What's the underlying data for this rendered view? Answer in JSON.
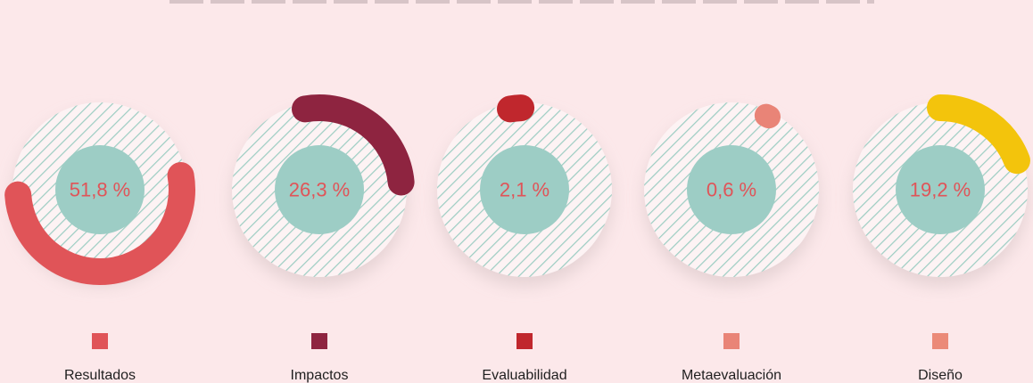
{
  "chart_data": {
    "type": "pie",
    "categories": [
      "Resultados",
      "Impactos",
      "Evaluabilidad",
      "Metaevaluación",
      "Diseño"
    ],
    "values": [
      51.8,
      26.3,
      2.1,
      0.6,
      19.2
    ],
    "value_labels": [
      "51,8 %",
      "26,3 %",
      "2,1 %",
      "0,6 %",
      "19,2 %"
    ],
    "arc_start_angles_deg": [
      -10,
      -100,
      -100,
      -65,
      -90
    ],
    "colors": [
      "#e05458",
      "#8e2440",
      "#c0272d",
      "#e98477",
      "#f3c40c"
    ],
    "legend_colors": [
      "#e05458",
      "#8e2440",
      "#c0272d",
      "#e98477",
      "#eb8a78"
    ],
    "label_color": "#e05458",
    "ring_hatch_color": "#9ccdc2",
    "center_color": "#9dcdc5",
    "legend_placement": "bottom"
  }
}
